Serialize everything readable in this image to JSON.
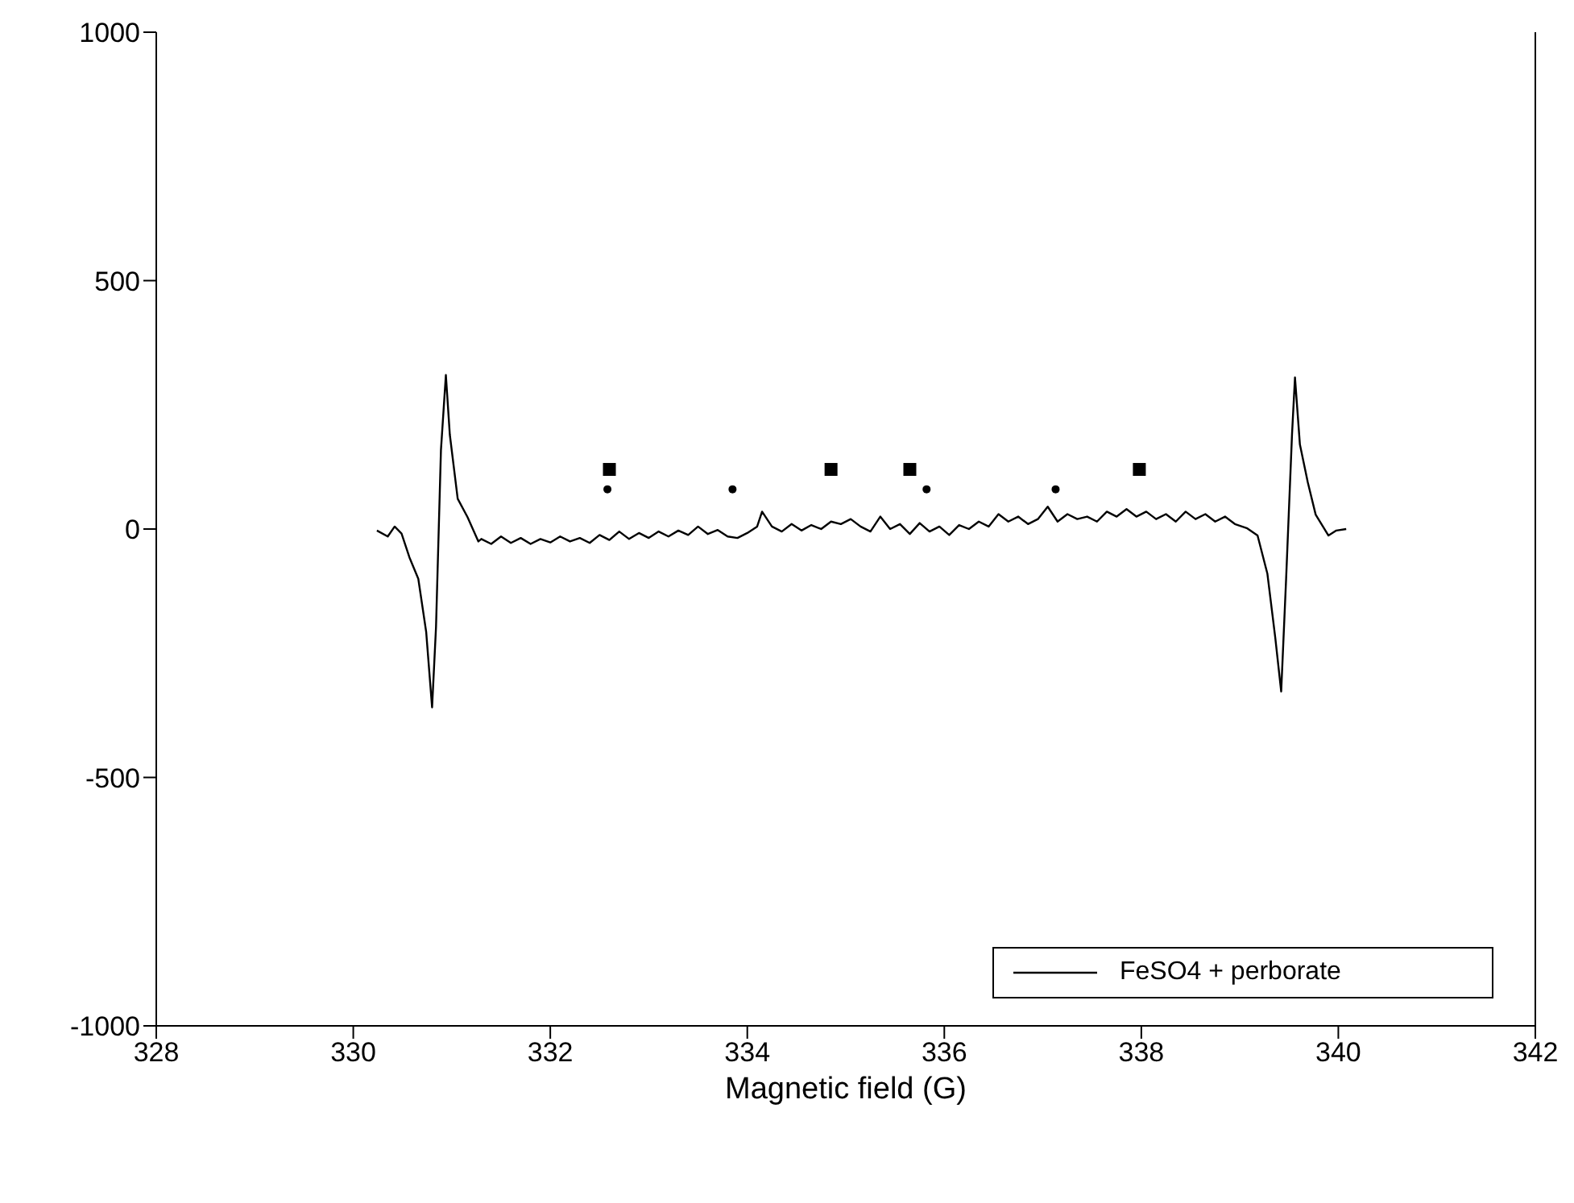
{
  "chart_data": {
    "type": "line",
    "xlabel": "Magnetic field (G)",
    "xlim": [
      328,
      342
    ],
    "xticks": [
      328,
      330,
      332,
      334,
      336,
      338,
      340,
      342
    ],
    "ylim": [
      -1000,
      1000
    ],
    "yticks": [
      -1000,
      -500,
      0,
      500,
      1000
    ],
    "grid": false,
    "legend": "bottom right",
    "line_style": "solid",
    "series": [
      {
        "name": "FeSO4 + perborate",
        "color": "#000000",
        "marker": "none",
        "x": [
          330.24,
          330.35,
          330.42,
          330.49,
          330.57,
          330.66,
          330.74,
          330.8,
          330.84,
          330.89,
          330.94,
          330.98,
          331.06,
          331.16,
          331.27,
          331.3,
          331.4,
          331.5,
          331.6,
          331.7,
          331.8,
          331.9,
          332.0,
          332.1,
          332.2,
          332.3,
          332.4,
          332.5,
          332.6,
          332.7,
          332.8,
          332.9,
          333.0,
          333.1,
          333.2,
          333.3,
          333.4,
          333.5,
          333.6,
          333.7,
          333.8,
          333.9,
          334.0,
          334.1,
          334.15,
          334.25,
          334.35,
          334.45,
          334.55,
          334.65,
          334.75,
          334.85,
          334.95,
          335.05,
          335.15,
          335.25,
          335.35,
          335.45,
          335.55,
          335.65,
          335.75,
          335.85,
          335.95,
          336.05,
          336.15,
          336.25,
          336.35,
          336.45,
          336.55,
          336.65,
          336.75,
          336.85,
          336.95,
          337.05,
          337.15,
          337.25,
          337.35,
          337.45,
          337.55,
          337.65,
          337.75,
          337.85,
          337.95,
          338.05,
          338.15,
          338.25,
          338.35,
          338.45,
          338.55,
          338.65,
          338.75,
          338.85,
          338.95,
          339.07,
          339.18,
          339.28,
          339.36,
          339.42,
          339.47,
          339.53,
          339.56,
          339.61,
          339.69,
          339.77,
          339.9,
          339.98,
          340.08
        ],
        "values": [
          -3,
          -15,
          5,
          -9,
          -57,
          -100,
          -207,
          -359,
          -197,
          159,
          310,
          190,
          61,
          24,
          -25,
          -20,
          -30,
          -15,
          -28,
          -18,
          -30,
          -20,
          -27,
          -15,
          -25,
          -18,
          -28,
          -12,
          -22,
          -5,
          -20,
          -8,
          -18,
          -5,
          -15,
          -3,
          -12,
          5,
          -10,
          -2,
          -15,
          -18,
          -8,
          5,
          35,
          5,
          -5,
          10,
          -3,
          8,
          0,
          15,
          10,
          20,
          5,
          -5,
          25,
          0,
          10,
          -10,
          12,
          -5,
          5,
          -12,
          8,
          0,
          15,
          5,
          30,
          15,
          25,
          10,
          20,
          45,
          15,
          30,
          20,
          25,
          15,
          35,
          25,
          40,
          25,
          35,
          20,
          30,
          15,
          35,
          20,
          30,
          15,
          25,
          10,
          2,
          -13,
          -90,
          -219,
          -327,
          -100,
          191,
          305,
          170,
          94,
          29,
          -13,
          -3,
          0
        ]
      },
      {
        "type": "scatter",
        "color": "#000000",
        "marker": "square",
        "x": [
          332.6,
          334.85,
          335.65,
          337.98
        ],
        "values": [
          120,
          120,
          120,
          120
        ]
      },
      {
        "type": "scatter",
        "color": "#000000",
        "marker": "circle",
        "x": [
          332.58,
          333.85,
          335.82,
          337.13
        ],
        "values": [
          80,
          80,
          80,
          80
        ]
      }
    ]
  }
}
